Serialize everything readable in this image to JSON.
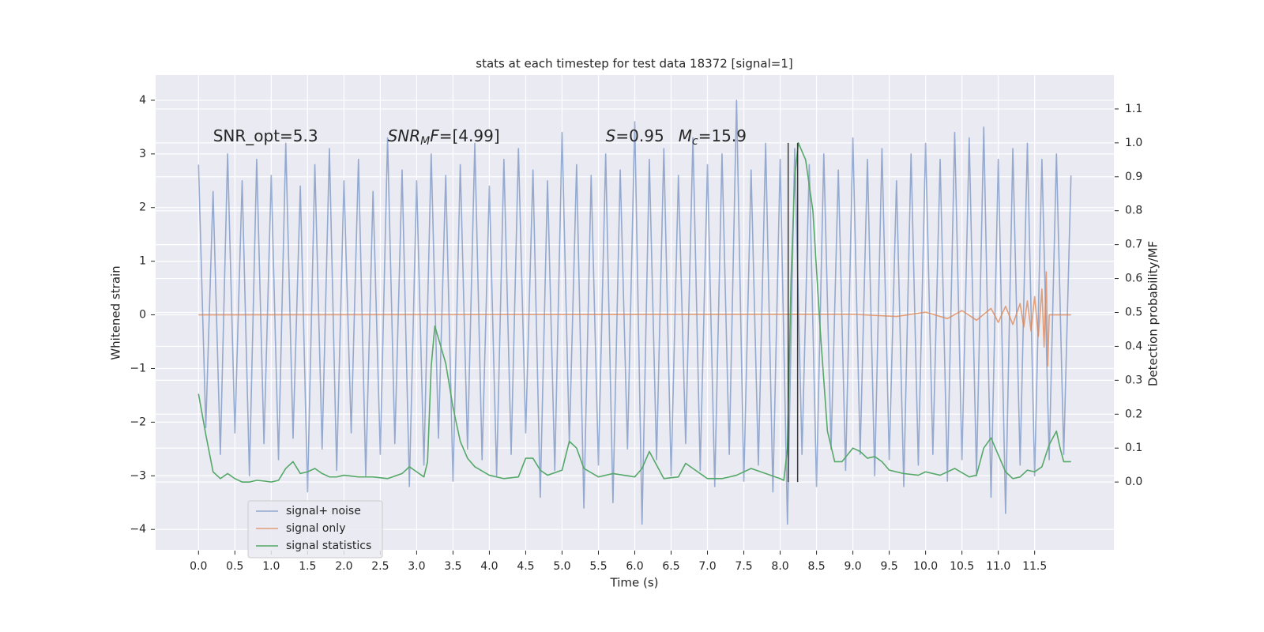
{
  "chart_data": {
    "type": "line",
    "title": "stats at each timestep for test data 18372 [signal=1]",
    "x_label": "Time (s)",
    "y_label": "Whitened strain",
    "y2_label": "Detection probability/MF",
    "xlim": [
      -0.59,
      12.59
    ],
    "ylim": [
      -4.38,
      4.47
    ],
    "y2lim": [
      -0.2,
      1.2
    ],
    "xticks": [
      {
        "value": 0,
        "label": "0.0"
      },
      0.5,
      {
        "value": 1,
        "label": "1.0"
      },
      1.5,
      {
        "value": 2,
        "label": "2.0"
      },
      2.5,
      {
        "value": 3,
        "label": "3.0"
      },
      3.5,
      {
        "value": 4,
        "label": "4.0"
      },
      4.5,
      {
        "value": 5,
        "label": "5.0"
      },
      5.5,
      {
        "value": 6,
        "label": "6.0"
      },
      6.5,
      {
        "value": 7,
        "label": "7.0"
      },
      7.5,
      {
        "value": 8,
        "label": "8.0"
      },
      8.5,
      {
        "value": 9,
        "label": "9.0"
      },
      9.5,
      {
        "value": 10,
        "label": "10.0"
      },
      10.5,
      {
        "value": 11,
        "label": "11.0"
      },
      11.5
    ],
    "yticks": [
      {
        "value": -4,
        "label": "−4"
      },
      {
        "value": -3,
        "label": "−3"
      },
      {
        "value": -2,
        "label": "−2"
      },
      {
        "value": -1,
        "label": "−1"
      },
      0,
      1,
      2,
      3,
      4
    ],
    "y2ticks": [
      {
        "value": 0,
        "label": "0.0"
      },
      0.1,
      0.2,
      0.3,
      0.4,
      0.5,
      0.6,
      0.7,
      0.8,
      0.9,
      {
        "value": 1,
        "label": "1.0"
      },
      1.1
    ],
    "grid": true,
    "legend": "lower left",
    "series": [
      {
        "name": "signal+ noise",
        "color": "#4c72b0",
        "alpha": 0.55,
        "x": [
          0.0,
          0.1,
          0.2,
          0.3,
          0.4,
          0.5,
          0.6,
          0.7,
          0.8,
          0.9,
          1.0,
          1.1,
          1.2,
          1.3,
          1.4,
          1.5,
          1.6,
          1.7,
          1.8,
          1.9,
          2.0,
          2.1,
          2.2,
          2.3,
          2.4,
          2.5,
          2.6,
          2.7,
          2.8,
          2.9,
          3.0,
          3.1,
          3.2,
          3.3,
          3.4,
          3.5,
          3.6,
          3.7,
          3.8,
          3.9,
          4.0,
          4.1,
          4.2,
          4.3,
          4.4,
          4.5,
          4.6,
          4.7,
          4.8,
          4.9,
          5.0,
          5.1,
          5.2,
          5.3,
          5.4,
          5.5,
          5.6,
          5.7,
          5.8,
          5.9,
          6.0,
          6.1,
          6.2,
          6.3,
          6.4,
          6.5,
          6.6,
          6.7,
          6.8,
          6.9,
          7.0,
          7.1,
          7.2,
          7.3,
          7.4,
          7.5,
          7.6,
          7.7,
          7.8,
          7.9,
          8.0,
          8.1,
          8.2,
          8.3,
          8.4,
          8.5,
          8.6,
          8.7,
          8.8,
          8.9,
          9.0,
          9.1,
          9.2,
          9.3,
          9.4,
          9.5,
          9.6,
          9.7,
          9.8,
          9.9,
          10.0,
          10.1,
          10.2,
          10.3,
          10.4,
          10.5,
          10.6,
          10.7,
          10.8,
          10.9,
          11.0,
          11.1,
          11.2,
          11.3,
          11.4,
          11.5,
          11.6,
          11.7,
          11.8,
          11.9,
          12.0
        ],
        "values": [
          2.8,
          -2.1,
          2.3,
          -2.6,
          3.0,
          -2.2,
          2.5,
          -3.0,
          2.9,
          -2.4,
          2.6,
          -2.7,
          3.2,
          -2.3,
          2.4,
          -3.3,
          2.8,
          -2.5,
          3.1,
          -2.9,
          2.5,
          -2.2,
          2.9,
          -3.0,
          2.3,
          -2.6,
          3.3,
          -2.4,
          2.7,
          -3.2,
          2.5,
          -2.8,
          3.0,
          -2.3,
          2.6,
          -3.1,
          2.8,
          -2.5,
          3.2,
          -2.7,
          2.4,
          -3.0,
          2.9,
          -2.6,
          3.1,
          -2.2,
          2.7,
          -3.4,
          2.5,
          -2.9,
          3.4,
          -2.4,
          2.8,
          -3.6,
          2.6,
          -2.8,
          3.0,
          -3.5,
          2.7,
          -2.5,
          3.6,
          -3.9,
          2.9,
          -2.7,
          3.1,
          -3.0,
          2.6,
          -2.4,
          3.3,
          -2.9,
          2.8,
          -3.2,
          3.0,
          -2.6,
          4.0,
          -3.1,
          2.7,
          -2.8,
          3.2,
          -3.3,
          2.9,
          -3.9,
          3.1,
          -2.6,
          2.8,
          -3.2,
          3.0,
          -2.5,
          2.7,
          -2.9,
          3.3,
          -2.6,
          2.9,
          -3.0,
          3.1,
          -2.7,
          2.5,
          -3.2,
          3.0,
          -2.8,
          3.2,
          -2.6,
          2.9,
          -3.1,
          3.4,
          -2.7,
          3.3,
          -3.0,
          3.5,
          -3.4,
          2.9,
          -3.7,
          3.1,
          -2.8,
          3.2,
          -3.0,
          2.9,
          -2.7,
          3.0,
          -2.6,
          2.6
        ]
      },
      {
        "name": "signal only",
        "color": "#dd8452",
        "alpha": 0.75,
        "x": [
          0,
          9.0,
          9.6,
          10.0,
          10.3,
          10.5,
          10.7,
          10.9,
          11.0,
          11.1,
          11.2,
          11.3,
          11.35,
          11.4,
          11.45,
          11.5,
          11.55,
          11.6,
          11.63,
          11.66,
          11.68,
          11.7,
          12.0
        ],
        "values": [
          0,
          0.01,
          -0.03,
          0.05,
          -0.07,
          0.08,
          -0.1,
          0.12,
          -0.14,
          0.16,
          -0.18,
          0.21,
          -0.23,
          0.26,
          -0.3,
          0.34,
          -0.4,
          0.48,
          -0.6,
          0.8,
          -0.95,
          0.0,
          0.0
        ]
      },
      {
        "name": "signal statistics",
        "color": "#55a868",
        "axis": "y2",
        "x": [
          0.0,
          0.1,
          0.2,
          0.3,
          0.4,
          0.5,
          0.6,
          0.7,
          0.8,
          0.9,
          1.0,
          1.1,
          1.2,
          1.3,
          1.4,
          1.5,
          1.6,
          1.7,
          1.8,
          1.9,
          2.0,
          2.2,
          2.4,
          2.6,
          2.8,
          2.9,
          3.0,
          3.1,
          3.15,
          3.2,
          3.25,
          3.4,
          3.5,
          3.6,
          3.7,
          3.8,
          4.0,
          4.2,
          4.4,
          4.5,
          4.6,
          4.7,
          4.8,
          5.0,
          5.1,
          5.2,
          5.3,
          5.5,
          5.7,
          6.0,
          6.1,
          6.2,
          6.3,
          6.4,
          6.6,
          6.7,
          6.8,
          7.0,
          7.2,
          7.4,
          7.6,
          7.8,
          8.0,
          8.05,
          8.1,
          8.15,
          8.2,
          8.25,
          8.35,
          8.45,
          8.55,
          8.65,
          8.75,
          8.85,
          9.0,
          9.1,
          9.2,
          9.3,
          9.4,
          9.5,
          9.7,
          9.9,
          10.0,
          10.2,
          10.4,
          10.6,
          10.7,
          10.8,
          10.9,
          11.0,
          11.1,
          11.2,
          11.3,
          11.4,
          11.5,
          11.6,
          11.7,
          11.8,
          11.85,
          11.9,
          12.0
        ],
        "values": [
          0.26,
          0.14,
          0.03,
          0.01,
          0.025,
          0.01,
          0.0,
          0.0,
          0.005,
          0.003,
          0.0,
          0.005,
          0.04,
          0.06,
          0.025,
          0.03,
          0.04,
          0.025,
          0.015,
          0.015,
          0.02,
          0.015,
          0.015,
          0.01,
          0.025,
          0.045,
          0.03,
          0.015,
          0.06,
          0.34,
          0.46,
          0.35,
          0.22,
          0.12,
          0.07,
          0.045,
          0.02,
          0.01,
          0.015,
          0.07,
          0.07,
          0.035,
          0.02,
          0.035,
          0.12,
          0.1,
          0.04,
          0.015,
          0.025,
          0.015,
          0.04,
          0.09,
          0.05,
          0.01,
          0.015,
          0.055,
          0.04,
          0.01,
          0.01,
          0.02,
          0.04,
          0.025,
          0.01,
          0.005,
          0.1,
          0.6,
          0.9,
          1.0,
          0.95,
          0.8,
          0.45,
          0.15,
          0.06,
          0.06,
          0.1,
          0.09,
          0.07,
          0.075,
          0.06,
          0.035,
          0.025,
          0.02,
          0.03,
          0.02,
          0.04,
          0.015,
          0.02,
          0.1,
          0.13,
          0.08,
          0.03,
          0.01,
          0.015,
          0.035,
          0.03,
          0.045,
          0.11,
          0.15,
          0.1,
          0.06,
          0.06
        ]
      }
    ],
    "vlines": {
      "x": [
        8.11,
        8.24
      ],
      "ymin": 0,
      "ymax": 1.0,
      "axis": "y2",
      "color": "#3a3a3a"
    },
    "annotations": [
      {
        "x": 0.2,
        "y": 3.32,
        "parts": [
          {
            "text": "SNR_opt=5.3"
          }
        ]
      },
      {
        "x": 2.6,
        "y": 3.32,
        "parts": [
          {
            "text": "SNR",
            "italic": true
          },
          {
            "text": "M",
            "italic": true,
            "sub": true
          },
          {
            "text": "F",
            "italic": true
          },
          {
            "text": "=[4.99]"
          }
        ]
      },
      {
        "x": 5.6,
        "y": 3.32,
        "parts": [
          {
            "text": "S",
            "italic": true
          },
          {
            "text": "=0.95"
          }
        ]
      },
      {
        "x": 6.6,
        "y": 3.32,
        "parts": [
          {
            "text": "M",
            "italic": true
          },
          {
            "text": "c",
            "italic": true,
            "sub": true
          },
          {
            "text": "=15.9"
          }
        ]
      }
    ]
  }
}
